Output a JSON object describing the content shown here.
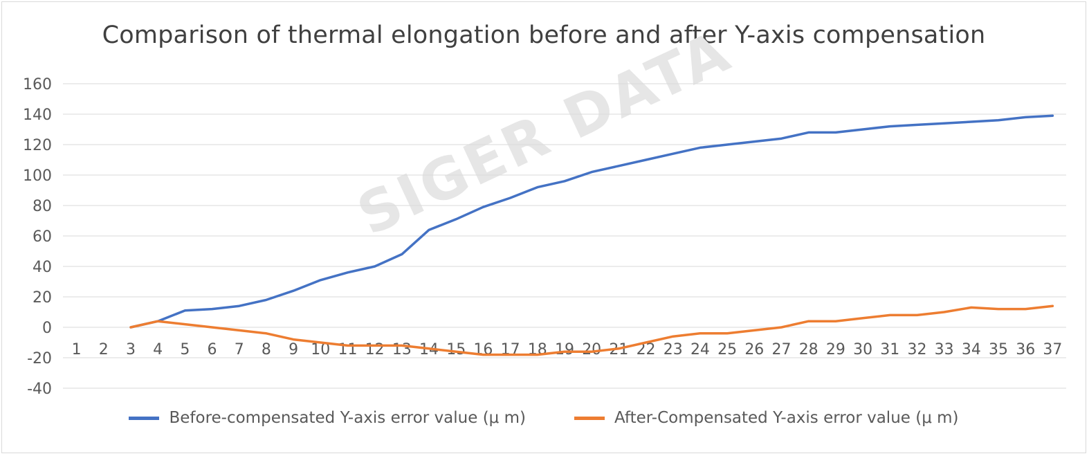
{
  "watermark": "SIGER DATA",
  "chart_data": {
    "type": "line",
    "title": "Comparison of thermal elongation before and after Y-axis compensation",
    "xlabel": "",
    "ylabel": "",
    "ylim": [
      -40,
      160
    ],
    "yticks": [
      -40,
      -20,
      0,
      20,
      40,
      60,
      80,
      100,
      120,
      140,
      160
    ],
    "grid": true,
    "legend_position": "bottom",
    "categories": [
      "1",
      "2",
      "3",
      "4",
      "5",
      "6",
      "7",
      "8",
      "9",
      "10",
      "11",
      "12",
      "13",
      "14",
      "15",
      "16",
      "17",
      "18",
      "19",
      "20",
      "21",
      "22",
      "23",
      "24",
      "25",
      "26",
      "27",
      "28",
      "29",
      "30",
      "31",
      "32",
      "33",
      "34",
      "35",
      "36",
      "37"
    ],
    "series": [
      {
        "name": "Before-compensated Y-axis error value (μ m)",
        "color": "#4472c4",
        "values": [
          null,
          null,
          0,
          4,
          11,
          12,
          14,
          18,
          24,
          31,
          36,
          40,
          48,
          64,
          71,
          79,
          85,
          92,
          96,
          102,
          106,
          110,
          114,
          118,
          120,
          122,
          124,
          128,
          128,
          130,
          132,
          133,
          134,
          135,
          136,
          138,
          139
        ]
      },
      {
        "name": "After-Compensated Y-axis error value (μ m)",
        "color": "#ed7d31",
        "values": [
          null,
          null,
          0,
          4,
          2,
          0,
          -2,
          -4,
          -8,
          -10,
          -12,
          -12,
          -12,
          -14,
          -16,
          -18,
          -18,
          -18,
          -16,
          -16,
          -14,
          -10,
          -6,
          -4,
          -4,
          -2,
          0,
          4,
          4,
          6,
          8,
          8,
          10,
          13,
          12,
          12,
          14
        ]
      }
    ]
  }
}
